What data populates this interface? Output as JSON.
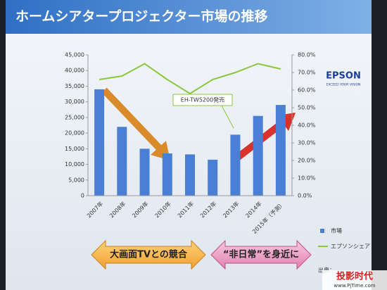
{
  "chart_data": {
    "type": "bar",
    "title": "ホームシアタープロジェクター市場の推移",
    "categories": [
      "2007年",
      "2008年",
      "2009年",
      "2010年",
      "2011年",
      "2012年",
      "2013年",
      "2014年",
      "2015年（予測）"
    ],
    "series": [
      {
        "name": "市場",
        "color": "#4a7fd6",
        "values": [
          34000,
          22000,
          15000,
          13500,
          13200,
          11500,
          19500,
          25500,
          29000
        ]
      },
      {
        "name": "エプソンシェア",
        "color": "#8cc63f",
        "type": "line",
        "axis": "y2",
        "values": [
          66,
          68,
          75,
          66,
          58,
          66,
          70,
          75,
          72
        ]
      }
    ],
    "ylim": [
      0,
      45000
    ],
    "yticks": [
      0,
      {
        "value": 5000,
        "label": "5,000"
      },
      {
        "value": 10000,
        "label": "10,000"
      },
      {
        "value": 15000,
        "label": "15,000"
      },
      {
        "value": 20000,
        "label": "20,000"
      },
      {
        "value": 25000,
        "label": "25,000"
      },
      {
        "value": 30000,
        "label": "30,000"
      },
      {
        "value": 35000,
        "label": "35,000"
      },
      {
        "value": 40000,
        "label": "40,000"
      },
      {
        "value": 45000,
        "label": "45,000"
      }
    ],
    "y2lim": [
      0,
      80
    ],
    "y2ticks": [
      {
        "value": 0,
        "label": "0.0%"
      },
      {
        "value": 10,
        "label": "10.0%"
      },
      {
        "value": 20,
        "label": "20.0%"
      },
      {
        "value": 30,
        "label": "30.0%"
      },
      {
        "value": 40,
        "label": "40.0%"
      },
      {
        "value": 50,
        "label": "50.0%"
      },
      {
        "value": 60,
        "label": "60.0%"
      },
      {
        "value": 70,
        "label": "70.0%"
      },
      {
        "value": 80,
        "label": "80.0%"
      }
    ],
    "annotation": "EH-TW5200発売",
    "legend": "right"
  },
  "slide": {
    "logo": "EPSON",
    "tagline": "EXCEED YOUR VISION",
    "arrows": [
      "大画面TVとの競合",
      "“非日常”を身近に"
    ],
    "source": "出典：",
    "watermark": {
      "brand": "投影时代",
      "url": "www.PjTime.com"
    }
  }
}
